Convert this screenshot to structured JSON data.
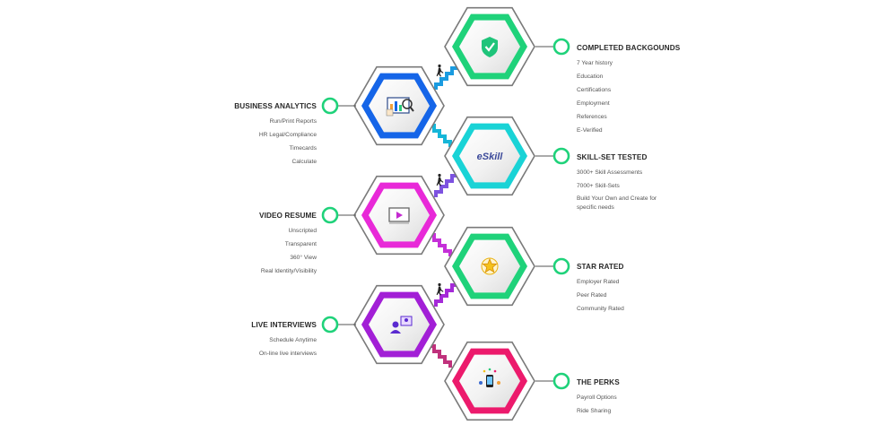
{
  "sections": [
    {
      "id": "backgrounds",
      "title": "COMPLETED BACKGOUNDS",
      "items": [
        "7 Year history",
        "Education",
        "Certifications",
        "Employment",
        "References",
        "E-Verified"
      ],
      "color": "#1fd27a",
      "icon": "shield-check-icon"
    },
    {
      "id": "analytics",
      "title": "BUSINESS ANALYTICS",
      "items": [
        "Run/Print Reports",
        "HR Legal/Compliance",
        "Timecards",
        "Calculate"
      ],
      "color": "#1565e8",
      "icon": "analytics-chart-icon"
    },
    {
      "id": "skillset",
      "title": "SKILL-SET TESTED",
      "items": [
        "3000+ Skill Assessments",
        "7000+ Skill-Sets",
        "Build Your Own and Create for specific needs"
      ],
      "color": "#19d3d6",
      "icon": "eskill-logo",
      "icon_text": "eSkill"
    },
    {
      "id": "video",
      "title": "VIDEO RESUME",
      "items": [
        "Unscripted",
        "Transparent",
        "360° View",
        "Real Identity/Visibility"
      ],
      "color": "#e829d8",
      "icon": "video-player-icon"
    },
    {
      "id": "star",
      "title": "STAR RATED",
      "items": [
        "Employer Rated",
        "Peer Rated",
        "Community Rated"
      ],
      "color": "#1fd27a",
      "icon": "star-icon"
    },
    {
      "id": "interviews",
      "title": "LIVE INTERVIEWS",
      "items": [
        "Schedule Anytime",
        "On-line live interviews"
      ],
      "color": "#a21fd6",
      "icon": "video-call-icon"
    },
    {
      "id": "perks",
      "title": "THE PERKS",
      "items": [
        "Payroll Options",
        "Ride Sharing"
      ],
      "color": "#ec1a6c",
      "icon": "phone-perks-icon"
    }
  ],
  "stairs": [
    {
      "color": "#1a9be0"
    },
    {
      "color": "#15b6d8"
    },
    {
      "color": "#7d52e0"
    },
    {
      "color": "#c52fd8"
    },
    {
      "color": "#a52ad8"
    },
    {
      "color": "#c0317c"
    }
  ],
  "runner_icons": [
    "runner-icon",
    "runner-icon",
    "runner-icon"
  ]
}
